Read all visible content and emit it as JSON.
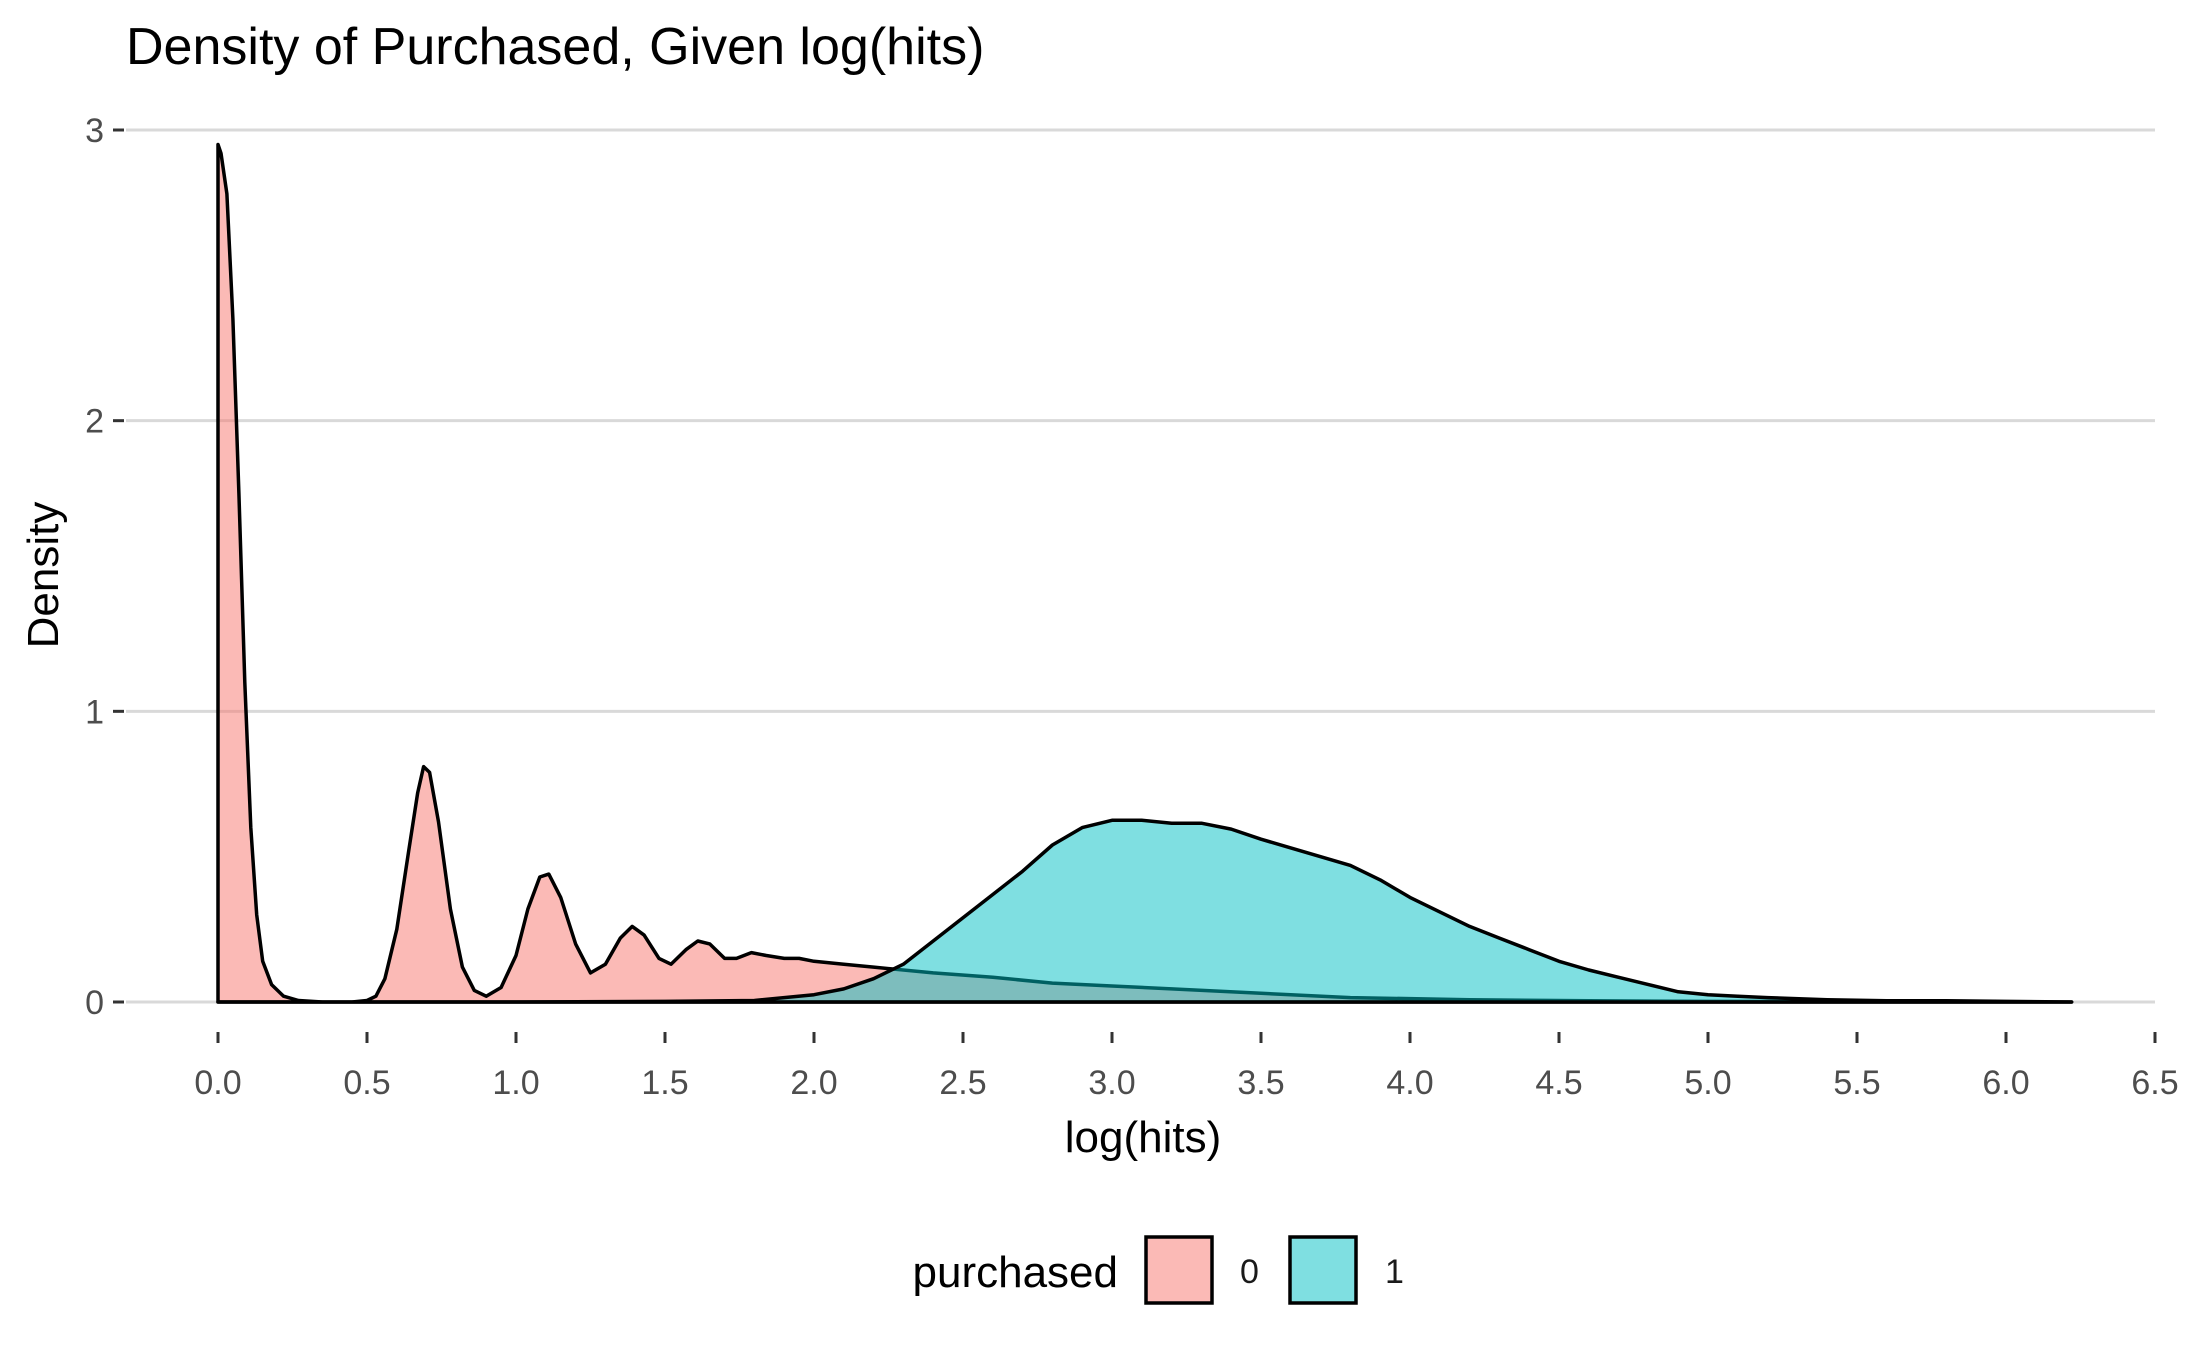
{
  "chart_data": {
    "type": "area",
    "title": "Density of Purchased, Given log(hits)",
    "xlabel": "log(hits)",
    "ylabel": "Density",
    "xlim": [
      0,
      6.5
    ],
    "ylim": [
      0,
      3
    ],
    "x_ticks": [
      "0.0",
      "0.5",
      "1.0",
      "1.5",
      "2.0",
      "2.5",
      "3.0",
      "3.5",
      "4.0",
      "4.5",
      "5.0",
      "5.5",
      "6.0",
      "6.5"
    ],
    "y_ticks": [
      "0",
      "1",
      "2",
      "3"
    ],
    "grid": "horizontal major",
    "legend": {
      "title": "purchased",
      "position": "bottom",
      "entries": [
        {
          "label": "0",
          "color": "#F8766D"
        },
        {
          "label": "1",
          "color": "#00BFC4"
        }
      ]
    },
    "series": [
      {
        "name": "0",
        "color": "#F8766D",
        "points": [
          [
            0.0,
            2.95
          ],
          [
            0.01,
            2.92
          ],
          [
            0.03,
            2.78
          ],
          [
            0.05,
            2.35
          ],
          [
            0.07,
            1.75
          ],
          [
            0.09,
            1.1
          ],
          [
            0.11,
            0.6
          ],
          [
            0.13,
            0.3
          ],
          [
            0.15,
            0.14
          ],
          [
            0.18,
            0.06
          ],
          [
            0.22,
            0.02
          ],
          [
            0.27,
            0.005
          ],
          [
            0.35,
            0.0
          ],
          [
            0.45,
            0.0
          ],
          [
            0.5,
            0.005
          ],
          [
            0.53,
            0.02
          ],
          [
            0.56,
            0.08
          ],
          [
            0.6,
            0.25
          ],
          [
            0.64,
            0.52
          ],
          [
            0.67,
            0.72
          ],
          [
            0.69,
            0.81
          ],
          [
            0.71,
            0.79
          ],
          [
            0.74,
            0.62
          ],
          [
            0.78,
            0.32
          ],
          [
            0.82,
            0.12
          ],
          [
            0.86,
            0.04
          ],
          [
            0.9,
            0.02
          ],
          [
            0.95,
            0.05
          ],
          [
            1.0,
            0.16
          ],
          [
            1.04,
            0.32
          ],
          [
            1.08,
            0.43
          ],
          [
            1.11,
            0.44
          ],
          [
            1.15,
            0.36
          ],
          [
            1.2,
            0.2
          ],
          [
            1.25,
            0.1
          ],
          [
            1.3,
            0.13
          ],
          [
            1.35,
            0.22
          ],
          [
            1.39,
            0.26
          ],
          [
            1.43,
            0.23
          ],
          [
            1.48,
            0.15
          ],
          [
            1.52,
            0.13
          ],
          [
            1.57,
            0.18
          ],
          [
            1.61,
            0.21
          ],
          [
            1.65,
            0.2
          ],
          [
            1.7,
            0.15
          ],
          [
            1.74,
            0.15
          ],
          [
            1.79,
            0.17
          ],
          [
            1.84,
            0.16
          ],
          [
            1.9,
            0.15
          ],
          [
            1.95,
            0.15
          ],
          [
            2.0,
            0.14
          ],
          [
            2.1,
            0.13
          ],
          [
            2.2,
            0.12
          ],
          [
            2.4,
            0.1
          ],
          [
            2.6,
            0.085
          ],
          [
            2.8,
            0.065
          ],
          [
            3.0,
            0.055
          ],
          [
            3.2,
            0.045
          ],
          [
            3.5,
            0.03
          ],
          [
            3.8,
            0.015
          ],
          [
            4.2,
            0.008
          ],
          [
            4.6,
            0.004
          ],
          [
            5.0,
            0.002
          ],
          [
            5.5,
            0.001
          ],
          [
            6.0,
            0.0
          ],
          [
            6.22,
            0.0
          ]
        ]
      },
      {
        "name": "1",
        "color": "#00BFC4",
        "points": [
          [
            0.0,
            0.0
          ],
          [
            0.5,
            0.0
          ],
          [
            1.0,
            0.0
          ],
          [
            1.5,
            0.002
          ],
          [
            1.8,
            0.005
          ],
          [
            2.0,
            0.025
          ],
          [
            2.1,
            0.045
          ],
          [
            2.2,
            0.08
          ],
          [
            2.3,
            0.13
          ],
          [
            2.4,
            0.21
          ],
          [
            2.5,
            0.29
          ],
          [
            2.6,
            0.37
          ],
          [
            2.7,
            0.45
          ],
          [
            2.8,
            0.54
          ],
          [
            2.9,
            0.6
          ],
          [
            3.0,
            0.625
          ],
          [
            3.1,
            0.625
          ],
          [
            3.2,
            0.615
          ],
          [
            3.3,
            0.615
          ],
          [
            3.4,
            0.595
          ],
          [
            3.5,
            0.56
          ],
          [
            3.6,
            0.53
          ],
          [
            3.7,
            0.5
          ],
          [
            3.8,
            0.47
          ],
          [
            3.9,
            0.42
          ],
          [
            4.0,
            0.36
          ],
          [
            4.1,
            0.31
          ],
          [
            4.2,
            0.26
          ],
          [
            4.3,
            0.22
          ],
          [
            4.4,
            0.18
          ],
          [
            4.5,
            0.14
          ],
          [
            4.6,
            0.11
          ],
          [
            4.7,
            0.085
          ],
          [
            4.8,
            0.06
          ],
          [
            4.9,
            0.035
          ],
          [
            5.0,
            0.025
          ],
          [
            5.1,
            0.02
          ],
          [
            5.2,
            0.015
          ],
          [
            5.4,
            0.008
          ],
          [
            5.6,
            0.004
          ],
          [
            5.8,
            0.004
          ],
          [
            6.0,
            0.002
          ],
          [
            6.22,
            0.0
          ]
        ]
      }
    ]
  }
}
